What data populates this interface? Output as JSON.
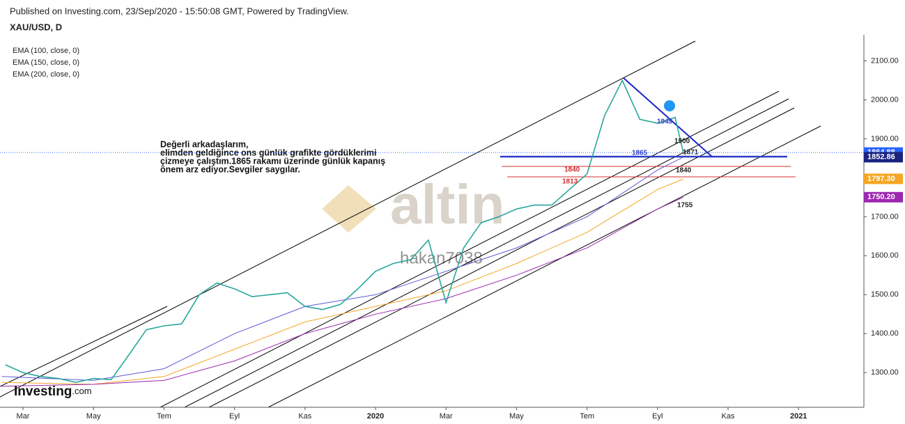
{
  "chart_data": {
    "type": "line",
    "published": "Published on Investing.com, 23/Sep/2020 - 15:50:08 GMT, Powered by TradingView.",
    "title": "XAU/USD, D",
    "note": [
      "Değerli arkadaşlarım,",
      "elimden geldiğince ons günlük grafikte gördüklerimi",
      "çizmeye çalıştım.1865 rakamı üzerinde günlük kapanış",
      "önem arz ediyor.Sevgiler saygılar."
    ],
    "watermark": "altin",
    "user": "hakan7038",
    "logo": "Investing",
    "logo_suffix": ".com",
    "color": "#26a69a",
    "x": [
      -0.5,
      0,
      0.5,
      1,
      1.5,
      2,
      2.5,
      3,
      3.5,
      4,
      4.5,
      5,
      5.5,
      6,
      6.5,
      7,
      7.5,
      8,
      8.5,
      9,
      9.5,
      10,
      10.5,
      11,
      11.5,
      12,
      12.5,
      13,
      13.5,
      14,
      14.5,
      15,
      15.5,
      16,
      16.5,
      17,
      17.5,
      18,
      18.5,
      18.73
    ],
    "values": [
      1320,
      1300,
      1290,
      1285,
      1275,
      1285,
      1282,
      1345,
      1410,
      1420,
      1425,
      1500,
      1530,
      1515,
      1495,
      1500,
      1505,
      1470,
      1462,
      1475,
      1515,
      1560,
      1580,
      1590,
      1640,
      1480,
      1620,
      1685,
      1700,
      1720,
      1730,
      1730,
      1770,
      1810,
      1960,
      2050,
      1950,
      1940,
      1955,
      1865
    ],
    "series": [
      {
        "name": "EMA (100, close, 0)",
        "color": "#5b5bd6",
        "x": [
          -0.6,
          2,
          4,
          6,
          8,
          10,
          12,
          14,
          16,
          18,
          18.73
        ],
        "values": [
          1290,
          1280,
          1310,
          1400,
          1470,
          1500,
          1560,
          1620,
          1700,
          1820,
          1853
        ]
      },
      {
        "name": "EMA (150, close, 0)",
        "color": "#f5a623",
        "x": [
          -0.6,
          2,
          4,
          6,
          8,
          10,
          12,
          14,
          16,
          18,
          18.73
        ],
        "values": [
          1275,
          1270,
          1290,
          1360,
          1430,
          1470,
          1510,
          1580,
          1660,
          1770,
          1797
        ]
      },
      {
        "name": "EMA (200, close, 0)",
        "color": "#9c27b0",
        "x": [
          -0.6,
          2,
          4,
          6,
          8,
          10,
          12,
          14,
          16,
          18,
          18.73
        ],
        "values": [
          1265,
          1270,
          1280,
          1330,
          1400,
          1450,
          1490,
          1550,
          1620,
          1720,
          1750
        ]
      }
    ],
    "xlim": [
      -0.65,
      23.85
    ],
    "xticks": [
      {
        "value": 0,
        "label": "Mar"
      },
      {
        "value": 2,
        "label": "May"
      },
      {
        "value": 4,
        "label": "Tem"
      },
      {
        "value": 6,
        "label": "Eyl"
      },
      {
        "value": 8,
        "label": "Kas"
      },
      {
        "value": 10,
        "label": "2020"
      },
      {
        "value": 12,
        "label": "Mar"
      },
      {
        "value": 14,
        "label": "May"
      },
      {
        "value": 16,
        "label": "Tem"
      },
      {
        "value": 18,
        "label": "Eyl"
      },
      {
        "value": 20,
        "label": "Kas"
      },
      {
        "value": 22,
        "label": "2021"
      }
    ],
    "ylim": [
      1211,
      2167
    ],
    "yticks": [
      {
        "value": 1300,
        "label": "1300.00"
      },
      {
        "value": 1400,
        "label": "1400.00"
      },
      {
        "value": 1500,
        "label": "1500.00"
      },
      {
        "value": 1600,
        "label": "1600.00"
      },
      {
        "value": 1700,
        "label": "1700.00"
      },
      {
        "value": 1800,
        "label": "1800.00"
      },
      {
        "value": 1900,
        "label": "1900.00"
      },
      {
        "value": 2000,
        "label": "2000.00"
      },
      {
        "value": 2100,
        "label": "2100.00"
      }
    ],
    "price_labels": [
      {
        "value": 1864.88,
        "color": "#2962ff"
      },
      {
        "value": 1852.86,
        "color": "#1a237e"
      },
      {
        "value": 1797.3,
        "label": "1797.30",
        "color": "#f5a623"
      },
      {
        "value": 1750.2,
        "label": "1750.20",
        "color": "#9c27b0"
      }
    ],
    "annotations": [
      "1949",
      "1900",
      "1871",
      "1865",
      "1840",
      "1840",
      "1813",
      "1755"
    ]
  }
}
